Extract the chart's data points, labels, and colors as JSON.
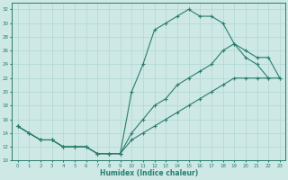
{
  "xlabel": "Humidex (Indice chaleur)",
  "xlim": [
    -0.5,
    23.5
  ],
  "ylim": [
    10,
    33
  ],
  "yticks": [
    10,
    12,
    14,
    16,
    18,
    20,
    22,
    24,
    26,
    28,
    30,
    32
  ],
  "xticks": [
    0,
    1,
    2,
    3,
    4,
    5,
    6,
    7,
    8,
    9,
    10,
    11,
    12,
    13,
    14,
    15,
    16,
    17,
    18,
    19,
    20,
    21,
    22,
    23
  ],
  "bg_color": "#cde8e5",
  "line_color": "#2a7d6e",
  "grid_color": "#b0d8d4",
  "line1_x": [
    0,
    1,
    2,
    3,
    4,
    5,
    6,
    7,
    8,
    9,
    10,
    11,
    12,
    13,
    14,
    15,
    16,
    17,
    18,
    19,
    20,
    21,
    22,
    23
  ],
  "line1_y": [
    15,
    14,
    13,
    13,
    12,
    12,
    12,
    11,
    11,
    11,
    20,
    24,
    29,
    30,
    31,
    32,
    31,
    31,
    30,
    27,
    25,
    24,
    22,
    null
  ],
  "line2_x": [
    0,
    1,
    2,
    3,
    4,
    5,
    6,
    7,
    8,
    9,
    10,
    11,
    12,
    13,
    14,
    15,
    16,
    17,
    18,
    19,
    20,
    21,
    22,
    23
  ],
  "line2_y": [
    15,
    14,
    13,
    13,
    12,
    12,
    12,
    11,
    11,
    11,
    14,
    16,
    18,
    19,
    21,
    22,
    23,
    24,
    26,
    27,
    26,
    25,
    25,
    22
  ],
  "line3_x": [
    0,
    1,
    2,
    3,
    4,
    5,
    6,
    7,
    8,
    9,
    10,
    11,
    12,
    13,
    14,
    15,
    16,
    17,
    18,
    19,
    20,
    21,
    22,
    23
  ],
  "line3_y": [
    15,
    14,
    13,
    13,
    12,
    12,
    12,
    11,
    11,
    11,
    13,
    14,
    15,
    16,
    17,
    18,
    19,
    20,
    21,
    22,
    22,
    22,
    22,
    22
  ]
}
